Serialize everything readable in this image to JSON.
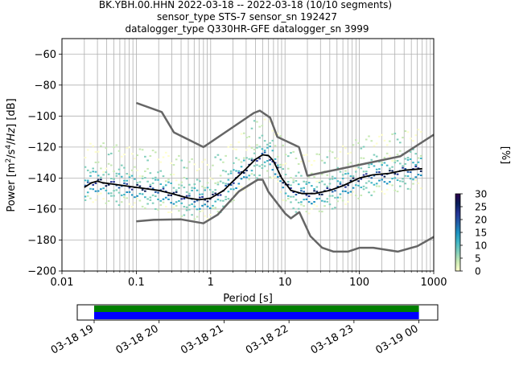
{
  "title": {
    "line1": "BK.YBH.00.HHN   2022-03-18 -- 2022-03-18  (10/10 segments)",
    "line2": "sensor_type STS-7 sensor_sn 192427",
    "line3": "datalogger_type Q330HR-GFE datalogger_sn 3999"
  },
  "chart_data": [
    {
      "type": "heatmap",
      "subtype": "probabilistic power spectral density",
      "xlabel": "Period [s]",
      "ylabel_plain": "Power [m2/s4/Hz] [dB]",
      "xscale": "log",
      "xlim": [
        0.01,
        1000
      ],
      "ylim": [
        -200,
        -50
      ],
      "x_tick_labels": [
        "0.01",
        "0.1",
        "1",
        "10",
        "100",
        "1000"
      ],
      "x_tick_values": [
        0.01,
        0.1,
        1,
        10,
        100,
        1000
      ],
      "y_ticks": [
        -60,
        -80,
        -100,
        -120,
        -140,
        -160,
        -180,
        -200
      ],
      "grid": true,
      "colorbar": {
        "label": "[%]",
        "ticks": [
          0,
          5,
          10,
          15,
          20,
          25,
          30
        ],
        "range": [
          0,
          30
        ],
        "colors": [
          "#ffffcc",
          "#c7e9b4",
          "#7fcdbb",
          "#41b6c4",
          "#1d91c0",
          "#225ea8",
          "#253494",
          "#081d58",
          "#2d004b"
        ]
      },
      "series": [
        {
          "role": "mean",
          "color": "#000000",
          "points": [
            [
              0.02,
              -146
            ],
            [
              0.025,
              -143
            ],
            [
              0.03,
              -142
            ],
            [
              0.035,
              -143
            ],
            [
              0.05,
              -144
            ],
            [
              0.1,
              -146
            ],
            [
              0.2,
              -148
            ],
            [
              0.3,
              -150
            ],
            [
              0.5,
              -153
            ],
            [
              0.7,
              -154
            ],
            [
              1,
              -153
            ],
            [
              1.5,
              -148
            ],
            [
              2,
              -142
            ],
            [
              3,
              -134
            ],
            [
              4,
              -128
            ],
            [
              5,
              -125
            ],
            [
              6,
              -125.5
            ],
            [
              7,
              -129
            ],
            [
              9,
              -140
            ],
            [
              12,
              -148
            ],
            [
              17,
              -150
            ],
            [
              25,
              -150
            ],
            [
              40,
              -148
            ],
            [
              60,
              -145
            ],
            [
              100,
              -140
            ],
            [
              150,
              -138
            ],
            [
              250,
              -137
            ],
            [
              400,
              -135
            ],
            [
              700,
              -134
            ]
          ]
        },
        {
          "role": "high noise model",
          "color": "#666666",
          "points": [
            [
              0.1,
              -91.5
            ],
            [
              0.22,
              -97.4
            ],
            [
              0.32,
              -110.5
            ],
            [
              0.8,
              -120
            ],
            [
              3.8,
              -98
            ],
            [
              4.6,
              -96.5
            ],
            [
              6.3,
              -101
            ],
            [
              7.9,
              -113.5
            ],
            [
              15.4,
              -120
            ],
            [
              20,
              -138.5
            ],
            [
              354.8,
              -126
            ],
            [
              1000,
              -112
            ]
          ]
        },
        {
          "role": "low noise model",
          "color": "#666666",
          "points": [
            [
              0.1,
              -168
            ],
            [
              0.17,
              -167
            ],
            [
              0.4,
              -166.7
            ],
            [
              0.8,
              -169.2
            ],
            [
              1.24,
              -163.7
            ],
            [
              2.4,
              -148.6
            ],
            [
              4.3,
              -141.1
            ],
            [
              5,
              -141.1
            ],
            [
              6,
              -149
            ],
            [
              10.1,
              -163
            ],
            [
              12,
              -166
            ],
            [
              15.6,
              -162
            ],
            [
              21.9,
              -177.5
            ],
            [
              31.6,
              -185
            ],
            [
              45,
              -187.5
            ],
            [
              70,
              -187.5
            ],
            [
              101,
              -185
            ],
            [
              154,
              -185
            ],
            [
              328,
              -187.5
            ],
            [
              600,
              -184
            ],
            [
              1000,
              -178
            ]
          ]
        }
      ]
    },
    {
      "type": "timeline",
      "x_tick_labels": [
        "03-18 19",
        "03-18 20",
        "03-18 21",
        "03-18 22",
        "03-18 23",
        "03-19 00"
      ],
      "x_tick_hours": [
        19,
        20,
        21,
        22,
        23,
        24
      ],
      "xlim_hours": [
        18.74,
        24.29
      ],
      "data_span_hours": [
        19.0,
        24.0
      ],
      "bands": [
        {
          "label": "",
          "color": "#008000"
        },
        {
          "label": "",
          "color": "#0000ff"
        }
      ]
    }
  ]
}
